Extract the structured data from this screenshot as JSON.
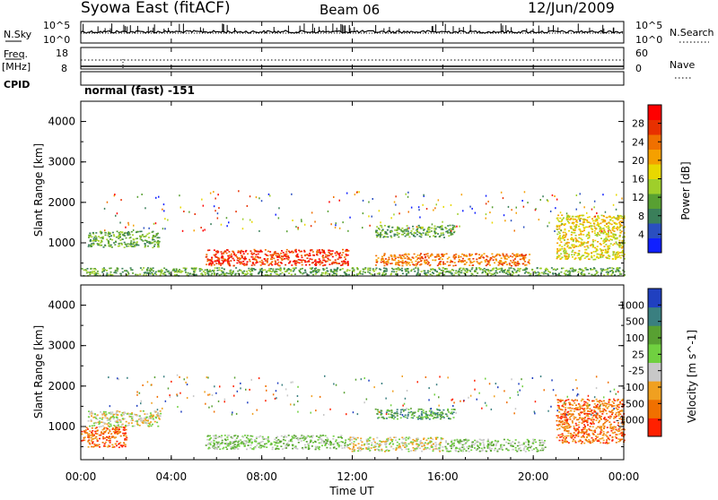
{
  "header": {
    "title": "Syowa East (fitACF)",
    "beam": "Beam 06",
    "date": "12/Jun/2009"
  },
  "top_panels": {
    "nsky_label": "N.Sky",
    "nsky_ticks": [
      "10^5",
      "10^0"
    ],
    "nsearch_label": "N.Search",
    "nsearch_ticks": [
      "10^5",
      "10^0"
    ],
    "freq_label": "Freq.",
    "freq_unit": "[MHz]",
    "freq_ticks": [
      "18",
      "8"
    ],
    "nave_label": "Nave",
    "nave_ticks": [
      "60",
      "0"
    ],
    "cpid_label": "CPID",
    "cpid_value": "normal (fast) -151"
  },
  "chart_data": [
    {
      "type": "heatmap",
      "panel": "power",
      "ylabel": "Slant Range [km]",
      "yticks": [
        "4000",
        "3000",
        "2000",
        "1000"
      ],
      "ylim": [
        180,
        4500
      ],
      "xlim": [
        0,
        24
      ],
      "colorbar_label": "Power [dB]",
      "colorbar_ticks": [
        "28",
        "24",
        "20",
        "16",
        "12",
        "8",
        "4"
      ],
      "colorscale": [
        "#1020ff",
        "#2a4fc0",
        "#3a7f5a",
        "#58a032",
        "#9fcf2a",
        "#e8d800",
        "#f5a000",
        "#f07000",
        "#e83000",
        "#ff0000"
      ],
      "approx_echo_regions": [
        {
          "t_start": 0.3,
          "t_end": 3.5,
          "range_km": [
            900,
            1300
          ],
          "power_db": 10
        },
        {
          "t_start": 5.5,
          "t_end": 11.8,
          "range_km": [
            450,
            850
          ],
          "power_db": 24
        },
        {
          "t_start": 13.0,
          "t_end": 16.5,
          "range_km": [
            1150,
            1450
          ],
          "power_db": 10
        },
        {
          "t_start": 13.0,
          "t_end": 19.8,
          "range_km": [
            450,
            750
          ],
          "power_db": 22
        },
        {
          "t_start": 21.0,
          "t_end": 24.0,
          "range_km": [
            600,
            1700
          ],
          "power_db": 16
        },
        {
          "t_start": 0.0,
          "t_end": 24.0,
          "range_km": [
            200,
            400
          ],
          "power_db": 8
        }
      ]
    },
    {
      "type": "heatmap",
      "panel": "velocity",
      "ylabel": "Slant Range [km]",
      "yticks": [
        "4000",
        "3000",
        "2000",
        "1000"
      ],
      "ylim": [
        180,
        4500
      ],
      "xlim": [
        0,
        24
      ],
      "colorbar_label": "Velocity [m s^-1]",
      "colorbar_ticks": [
        "1000",
        "500",
        "100",
        "25",
        "-25",
        "-100",
        "-500",
        "-1000"
      ],
      "colorscale": [
        "#2040c0",
        "#3a7f80",
        "#58a032",
        "#70d040",
        "#c8c8c8",
        "#f0a020",
        "#f07000",
        "#ff2000"
      ],
      "approx_echo_regions": [
        {
          "t_start": 0.3,
          "t_end": 3.5,
          "range_km": [
            1000,
            1400
          ],
          "velocity": 0
        },
        {
          "t_start": 0.0,
          "t_end": 2.0,
          "range_km": [
            500,
            1000
          ],
          "velocity": -300
        },
        {
          "t_start": 5.5,
          "t_end": 11.8,
          "range_km": [
            450,
            800
          ],
          "velocity": 80
        },
        {
          "t_start": 11.8,
          "t_end": 16.0,
          "range_km": [
            400,
            750
          ],
          "velocity": 10
        },
        {
          "t_start": 13.0,
          "t_end": 16.5,
          "range_km": [
            1200,
            1450
          ],
          "velocity": 150
        },
        {
          "t_start": 16.0,
          "t_end": 20.5,
          "range_km": [
            400,
            700
          ],
          "velocity": 90
        },
        {
          "t_start": 21.0,
          "t_end": 24.0,
          "range_km": [
            600,
            1700
          ],
          "velocity": -200
        }
      ]
    }
  ],
  "xaxis": {
    "label": "Time UT",
    "ticks": [
      "00:00",
      "04:00",
      "08:00",
      "12:00",
      "16:00",
      "20:00",
      "00:00"
    ]
  }
}
